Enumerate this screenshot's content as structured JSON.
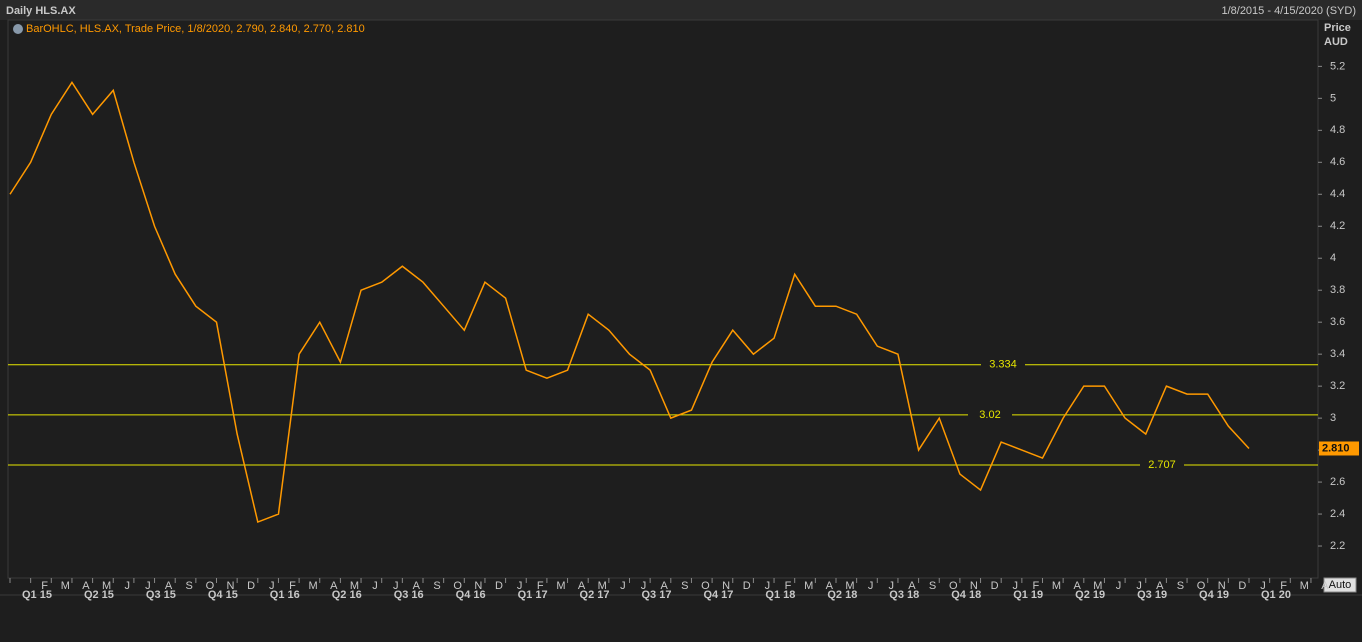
{
  "chart_data": {
    "type": "line",
    "title": "Daily HLS.AX",
    "date_range": "1/8/2015 - 4/15/2020 (SYD)",
    "legend_text": "BarOHLC, HLS.AX, Trade Price, 1/8/2020, 2.790, 2.840, 2.770, 2.810",
    "y_axis_label": "Price",
    "y_axis_unit": "AUD",
    "scale_button": "Auto",
    "categories": [
      null,
      "F",
      "M",
      "A",
      "M",
      "J",
      "J",
      "A",
      "S",
      "O",
      "N",
      "D",
      "J",
      "F",
      "M",
      "A",
      "M",
      "J",
      "J",
      "A",
      "S",
      "O",
      "N",
      "D",
      "J",
      "F",
      "M",
      "A",
      "M",
      "J",
      "J",
      "A",
      "S",
      "O",
      "N",
      "D",
      "J",
      "F",
      "M",
      "A",
      "M",
      "J",
      "J",
      "A",
      "S",
      "O",
      "N",
      "D",
      "J",
      "F",
      "M",
      "A",
      "M",
      "J",
      "J",
      "A",
      "S",
      "O",
      "N",
      "D",
      "J",
      "F",
      "M",
      "A"
    ],
    "quarters": [
      "Q1 15",
      "Q2 15",
      "Q3 15",
      "Q4 15",
      "Q1 16",
      "Q2 16",
      "Q3 16",
      "Q4 16",
      "Q1 17",
      "Q2 17",
      "Q3 17",
      "Q4 17",
      "Q1 18",
      "Q2 18",
      "Q3 18",
      "Q4 18",
      "Q1 19",
      "Q2 19",
      "Q3 19",
      "Q4 19",
      "Q1 20"
    ],
    "series": [
      {
        "name": "HLS.AX",
        "color": "#ff9900",
        "values": [
          4.4,
          4.6,
          4.9,
          5.1,
          4.9,
          5.05,
          4.6,
          4.2,
          3.9,
          3.7,
          3.6,
          2.9,
          2.35,
          2.4,
          3.4,
          3.6,
          3.35,
          3.8,
          3.85,
          3.95,
          3.85,
          3.7,
          3.55,
          3.85,
          3.75,
          3.3,
          3.25,
          3.3,
          3.65,
          3.55,
          3.4,
          3.3,
          3.0,
          3.05,
          3.35,
          3.55,
          3.4,
          3.5,
          3.9,
          3.7,
          3.7,
          3.65,
          3.45,
          3.4,
          2.8,
          3.0,
          2.65,
          2.55,
          2.85,
          2.8,
          2.75,
          3.0,
          3.2,
          3.2,
          3.0,
          2.9,
          3.2,
          3.15,
          3.15,
          2.95,
          2.81,
          null,
          null,
          null
        ]
      }
    ],
    "hlines": [
      3.334,
      3.02,
      2.707
    ],
    "hline_color": "#e6e600",
    "last_price": {
      "value": 2.81,
      "label": "2.810"
    },
    "ylim": [
      2.0,
      5.49
    ],
    "yticks": [
      2.2,
      2.4,
      2.6,
      2.8,
      3,
      3.2,
      3.4,
      3.6,
      3.8,
      4,
      4.2,
      4.4,
      4.6,
      4.8,
      5,
      5.2
    ]
  }
}
